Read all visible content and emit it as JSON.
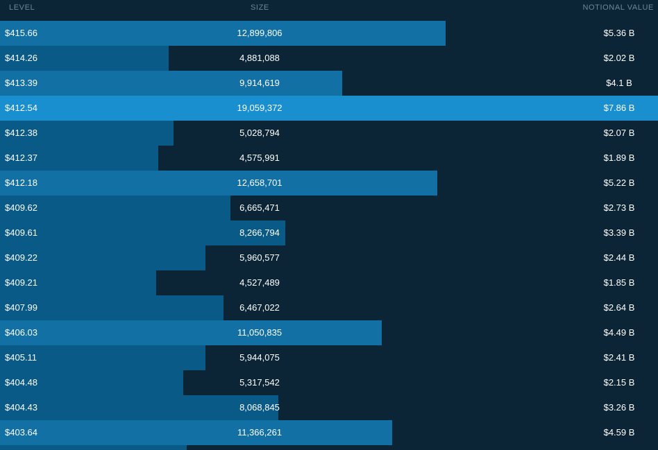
{
  "header": {
    "level": "LEVEL",
    "size": "SIZE",
    "notional": "NOTIONAL VALUE"
  },
  "colors": {
    "background": "#0b2537",
    "bar_small": "#0a5a87",
    "bar_large": "#1270a4",
    "bar_max": "#1a8fcf",
    "header_text": "#6f8798"
  },
  "max_size": 19059372,
  "rows": [
    {
      "level": "$415.66",
      "size": "12,899,806",
      "size_value": 12899806,
      "notional": "$5.36 B"
    },
    {
      "level": "$414.26",
      "size": "4,881,088",
      "size_value": 4881088,
      "notional": "$2.02 B"
    },
    {
      "level": "$413.39",
      "size": "9,914,619",
      "size_value": 9914619,
      "notional": "$4.1 B"
    },
    {
      "level": "$412.54",
      "size": "19,059,372",
      "size_value": 19059372,
      "notional": "$7.86 B"
    },
    {
      "level": "$412.38",
      "size": "5,028,794",
      "size_value": 5028794,
      "notional": "$2.07 B"
    },
    {
      "level": "$412.37",
      "size": "4,575,991",
      "size_value": 4575991,
      "notional": "$1.89 B"
    },
    {
      "level": "$412.18",
      "size": "12,658,701",
      "size_value": 12658701,
      "notional": "$5.22 B"
    },
    {
      "level": "$409.62",
      "size": "6,665,471",
      "size_value": 6665471,
      "notional": "$2.73 B"
    },
    {
      "level": "$409.61",
      "size": "8,266,794",
      "size_value": 8266794,
      "notional": "$3.39 B"
    },
    {
      "level": "$409.22",
      "size": "5,960,577",
      "size_value": 5960577,
      "notional": "$2.44 B"
    },
    {
      "level": "$409.21",
      "size": "4,527,489",
      "size_value": 4527489,
      "notional": "$1.85 B"
    },
    {
      "level": "$407.99",
      "size": "6,467,022",
      "size_value": 6467022,
      "notional": "$2.64 B"
    },
    {
      "level": "$406.03",
      "size": "11,050,835",
      "size_value": 11050835,
      "notional": "$4.49 B"
    },
    {
      "level": "$405.11",
      "size": "5,944,075",
      "size_value": 5944075,
      "notional": "$2.41 B"
    },
    {
      "level": "$404.48",
      "size": "5,317,542",
      "size_value": 5317542,
      "notional": "$2.15 B"
    },
    {
      "level": "$404.43",
      "size": "8,068,845",
      "size_value": 8068845,
      "notional": "$3.26 B"
    },
    {
      "level": "$403.64",
      "size": "11,366,261",
      "size_value": 11366261,
      "notional": "$4.59 B"
    },
    {
      "level": "",
      "size": "",
      "size_value": 5400000,
      "notional": ""
    }
  ]
}
